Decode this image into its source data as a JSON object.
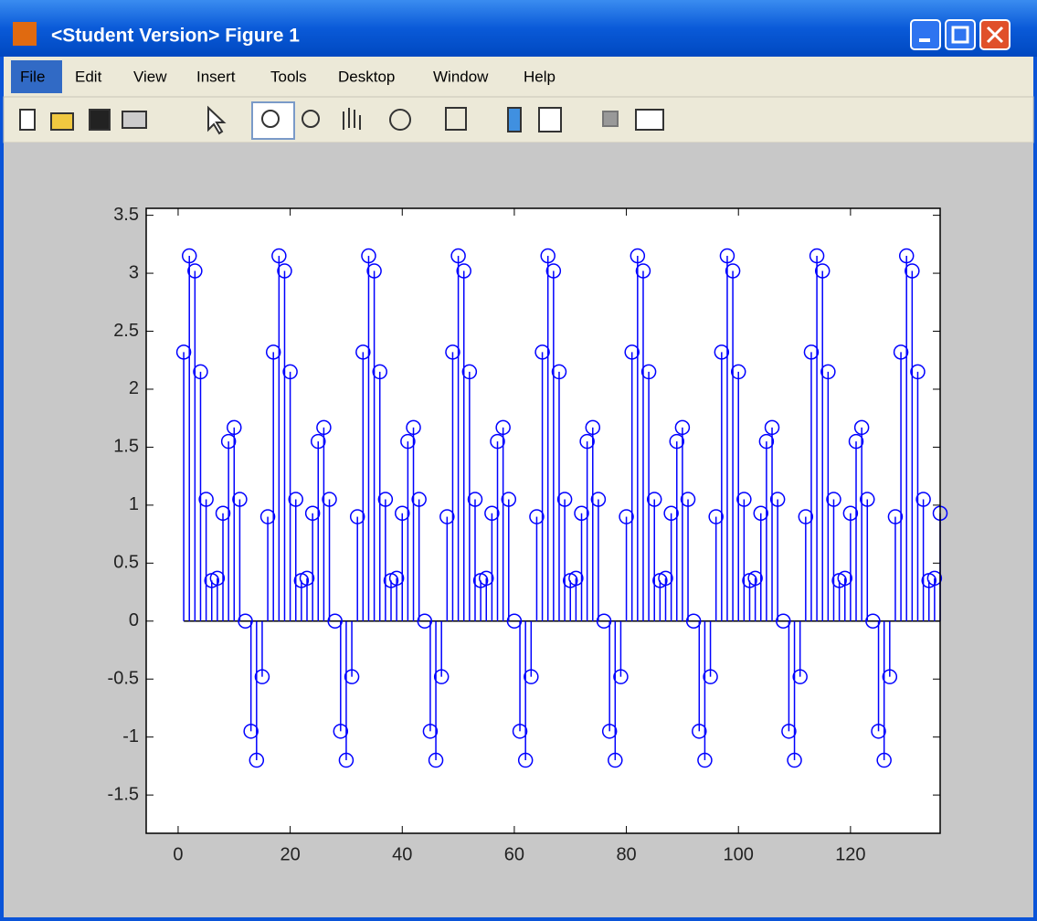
{
  "window": {
    "title": "<Student Version> Figure 1",
    "menu": [
      "File",
      "Edit",
      "View",
      "Insert",
      "Tools",
      "Desktop",
      "Window",
      "Help"
    ]
  },
  "chart_data": {
    "type": "stem",
    "x": [
      1,
      2,
      3,
      4,
      5,
      6,
      7,
      8,
      9,
      10,
      11,
      12,
      13,
      14,
      15,
      16,
      17,
      18,
      19,
      20,
      21,
      22,
      23,
      24,
      25,
      26,
      27,
      28,
      29,
      30,
      31,
      32,
      33,
      34,
      35,
      36,
      37,
      38,
      39,
      40,
      41,
      42,
      43,
      44,
      45,
      46,
      47,
      48,
      49,
      50,
      51,
      52,
      53,
      54,
      55,
      56,
      57,
      58,
      59,
      60,
      61,
      62,
      63,
      64,
      65,
      66,
      67,
      68,
      69,
      70,
      71,
      72,
      73,
      74,
      75,
      76,
      77,
      78,
      79,
      80,
      81,
      82,
      83,
      84,
      85,
      86,
      87,
      88,
      89,
      90,
      91,
      92,
      93,
      94,
      95,
      96,
      97,
      98,
      99,
      100,
      101,
      102,
      103,
      104,
      105,
      106,
      107,
      108,
      109,
      110,
      111,
      112,
      113,
      114,
      115,
      116,
      117,
      118,
      119,
      120,
      121,
      122,
      123,
      124,
      125,
      126,
      127,
      128,
      129,
      130,
      131,
      132,
      133,
      134,
      135,
      136
    ],
    "values": [
      2.32,
      3.15,
      3.02,
      2.15,
      1.05,
      0.35,
      0.37,
      0.93,
      1.55,
      1.67,
      1.05,
      0,
      -0.95,
      -1.2,
      -0.48,
      0.9,
      2.32,
      3.15,
      3.02,
      2.15,
      1.05,
      0.35,
      0.37,
      0.93,
      1.55,
      1.67,
      1.05,
      0,
      -0.95,
      -1.2,
      -0.48,
      0.9,
      2.32,
      3.15,
      3.02,
      2.15,
      1.05,
      0.35,
      0.37,
      0.93,
      1.55,
      1.67,
      1.05,
      0,
      -0.95,
      -1.2,
      -0.48,
      0.9,
      2.32,
      3.15,
      3.02,
      2.15,
      1.05,
      0.35,
      0.37,
      0.93,
      1.55,
      1.67,
      1.05,
      0,
      -0.95,
      -1.2,
      -0.48,
      0.9,
      2.32,
      3.15,
      3.02,
      2.15,
      1.05,
      0.35,
      0.37,
      0.93,
      1.55,
      1.67,
      1.05,
      0,
      -0.95,
      -1.2,
      -0.48,
      0.9,
      2.32,
      3.15,
      3.02,
      2.15,
      1.05,
      0.35,
      0.37,
      0.93,
      1.55,
      1.67,
      1.05,
      0,
      -0.95,
      -1.2,
      -0.48,
      0.9,
      2.32,
      3.15,
      3.02,
      2.15,
      1.05,
      0.35,
      0.37,
      0.93,
      1.55,
      1.67,
      1.05,
      0,
      -0.95,
      -1.2,
      -0.48,
      0.9,
      2.32,
      3.15,
      3.02,
      2.15,
      1.05,
      0.35,
      0.37,
      0.93,
      1.55,
      1.67,
      1.05,
      0,
      -0.95,
      -1.2,
      -0.48,
      0.9,
      2.32,
      3.15,
      3.02,
      2.15,
      1.05,
      0.35,
      0.37,
      0.93
    ],
    "color": "#0000ff",
    "xlim": [
      -5.7,
      136
    ],
    "ylim": [
      -1.83,
      3.56
    ],
    "xticks": [
      0,
      20,
      40,
      60,
      80,
      100,
      120
    ],
    "yticks": [
      -1.5,
      -1,
      -0.5,
      0,
      0.5,
      1,
      1.5,
      2,
      2.5,
      3,
      3.5
    ]
  }
}
